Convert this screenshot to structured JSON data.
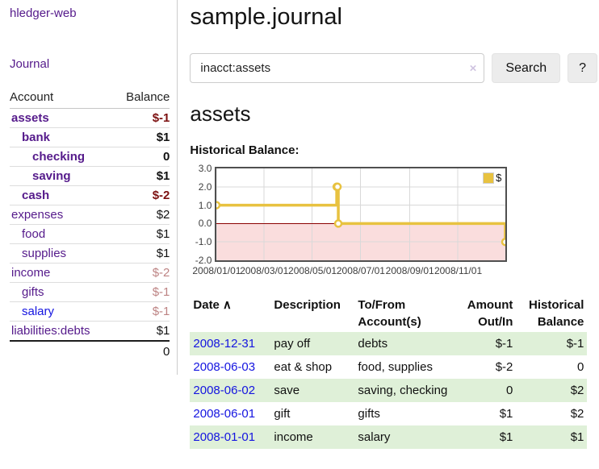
{
  "app": {
    "brand": "hledger-web",
    "nav_journal": "Journal"
  },
  "sidebar": {
    "col_account": "Account",
    "col_balance": "Balance",
    "accounts": [
      {
        "name": "assets",
        "balance": "$-1",
        "level": 0,
        "bold": true,
        "neg": "strong",
        "link_color": "purple"
      },
      {
        "name": "bank",
        "balance": "$1",
        "level": 1,
        "bold": true,
        "neg": "none",
        "link_color": "purple"
      },
      {
        "name": "checking",
        "balance": "0",
        "level": 2,
        "bold": true,
        "neg": "none",
        "link_color": "purple"
      },
      {
        "name": "saving",
        "balance": "$1",
        "level": 2,
        "bold": true,
        "neg": "none",
        "link_color": "purple"
      },
      {
        "name": "cash",
        "balance": "$-2",
        "level": 1,
        "bold": true,
        "neg": "strong",
        "link_color": "purple"
      },
      {
        "name": "expenses",
        "balance": "$2",
        "level": 0,
        "bold": false,
        "neg": "none",
        "link_color": "purple"
      },
      {
        "name": "food",
        "balance": "$1",
        "level": 1,
        "bold": false,
        "neg": "none",
        "link_color": "purple"
      },
      {
        "name": "supplies",
        "balance": "$1",
        "level": 1,
        "bold": false,
        "neg": "none",
        "link_color": "purple"
      },
      {
        "name": "income",
        "balance": "$-2",
        "level": 0,
        "bold": false,
        "neg": "muted",
        "link_color": "purple"
      },
      {
        "name": "gifts",
        "balance": "$-1",
        "level": 1,
        "bold": false,
        "neg": "muted",
        "link_color": "purple"
      },
      {
        "name": "salary",
        "balance": "$-1",
        "level": 1,
        "bold": false,
        "neg": "muted",
        "link_color": "blue"
      },
      {
        "name": "liabilities:debts",
        "balance": "$1",
        "level": 0,
        "bold": false,
        "neg": "none",
        "link_color": "purple"
      }
    ],
    "total": "0"
  },
  "header": {
    "title": "sample.journal"
  },
  "search": {
    "value": "inacct:assets",
    "clear_icon": "×",
    "button": "Search",
    "help_button": "?"
  },
  "account_page": {
    "title": "assets",
    "chart_label": "Historical Balance:"
  },
  "chart_data": {
    "type": "line",
    "step": true,
    "title": "Historical Balance",
    "legend": [
      {
        "label": "$",
        "color": "#e8c240"
      }
    ],
    "legend_position": "top-right",
    "grid": true,
    "ylim": [
      -2,
      3
    ],
    "xlim_days": [
      0,
      365
    ],
    "y_ticks": [
      {
        "label": "3.0",
        "value": 3
      },
      {
        "label": "2.0",
        "value": 2
      },
      {
        "label": "1.0",
        "value": 1
      },
      {
        "label": "0.0",
        "value": 0
      },
      {
        "label": "-1.0",
        "value": -1
      },
      {
        "label": "-2.0",
        "value": -2
      }
    ],
    "x_ticks": [
      {
        "label": "2008/01/01",
        "day": 0
      },
      {
        "label": "2008/03/01",
        "day": 60
      },
      {
        "label": "2008/05/01",
        "day": 121
      },
      {
        "label": "2008/07/01",
        "day": 182
      },
      {
        "label": "2008/09/01",
        "day": 244
      },
      {
        "label": "2008/11/01",
        "day": 305
      }
    ],
    "points": [
      {
        "date": "2008-01-01",
        "day": 0,
        "balance": 1
      },
      {
        "date": "2008-06-01",
        "day": 152,
        "balance": 2
      },
      {
        "date": "2008-06-02",
        "day": 153,
        "balance": 2
      },
      {
        "date": "2008-06-03",
        "day": 154,
        "balance": 0
      },
      {
        "date": "2008-12-31",
        "day": 365,
        "balance": -1
      }
    ],
    "series_color": "#e8c240",
    "marker_fill": "#ffffff",
    "negative_fill": "#fadddd",
    "zero_line_color": "#8b0000",
    "grid_color": "#d9d9d9",
    "border_color": "#4f4f4f"
  },
  "register": {
    "sort_icon": "∧",
    "columns": [
      {
        "line1": "Date",
        "line2": ""
      },
      {
        "line1": "Description",
        "line2": ""
      },
      {
        "line1": "To/From",
        "line2": "Account(s)"
      },
      {
        "line1": "Amount",
        "line2": "Out/In"
      },
      {
        "line1": "Historical",
        "line2": "Balance"
      }
    ],
    "rows": [
      {
        "date": "2008-12-31",
        "description": "pay off",
        "accounts": "debts",
        "amount": "$-1",
        "amount_neg": true,
        "balance": "$-1",
        "balance_neg": true
      },
      {
        "date": "2008-06-03",
        "description": "eat & shop",
        "accounts": "food, supplies",
        "amount": "$-2",
        "amount_neg": true,
        "balance": "0",
        "balance_neg": false
      },
      {
        "date": "2008-06-02",
        "description": "save",
        "accounts": "saving, checking",
        "amount": "0",
        "amount_neg": false,
        "balance": "$2",
        "balance_neg": false
      },
      {
        "date": "2008-06-01",
        "description": "gift",
        "accounts": "gifts",
        "amount": "$1",
        "amount_neg": false,
        "balance": "$2",
        "balance_neg": false
      },
      {
        "date": "2008-01-01",
        "description": "income",
        "accounts": "salary",
        "amount": "$1",
        "amount_neg": false,
        "balance": "$1",
        "balance_neg": false
      }
    ]
  }
}
